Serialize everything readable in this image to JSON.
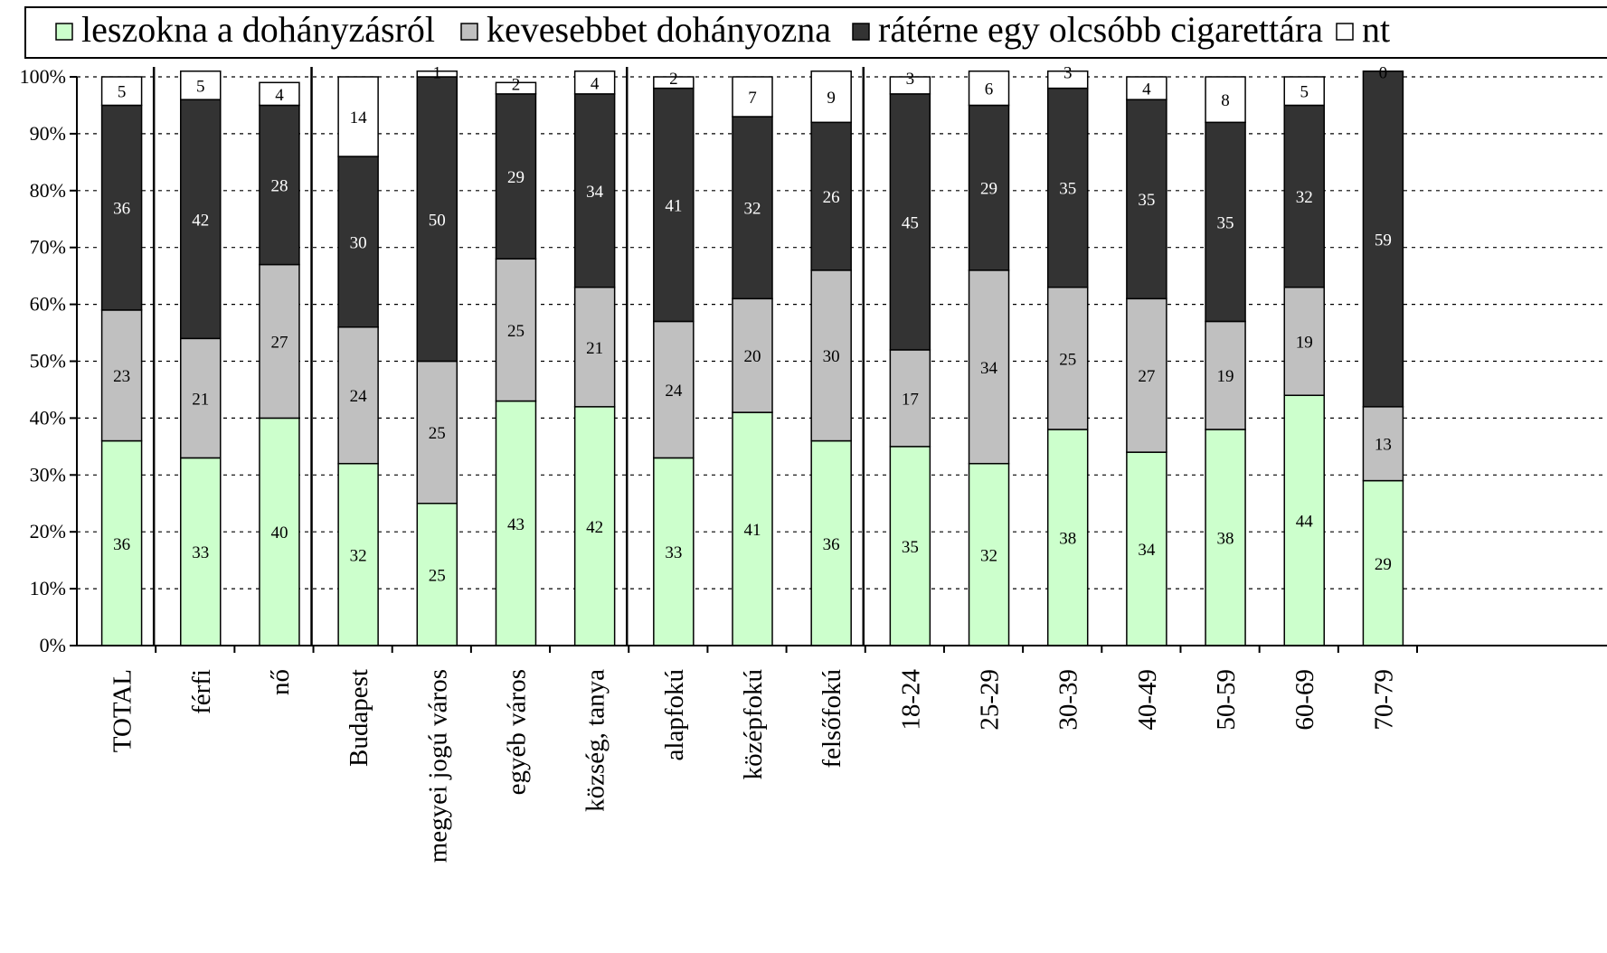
{
  "chart_data": {
    "type": "bar",
    "stacked": true,
    "percent": true,
    "legend_position": "top",
    "grid": true,
    "ylim": [
      0,
      100
    ],
    "y_ticks": [
      "0%",
      "10%",
      "20%",
      "30%",
      "40%",
      "50%",
      "60%",
      "70%",
      "80%",
      "90%",
      "100%"
    ],
    "categories": [
      "TOTAL",
      "férfi",
      "nő",
      "Budapest",
      "megyei jogú város",
      "egyéb város",
      "község, tanya",
      "alapfokú",
      "középfokú",
      "felsőfokú",
      "18-24",
      "25-29",
      "30-39",
      "40-49",
      "50-59",
      "60-69",
      "70-79"
    ],
    "group_separators_after": [
      0,
      2,
      6,
      9
    ],
    "series": [
      {
        "name": "leszokna a dohányzásról",
        "color": "#ccffcc",
        "values": [
          36,
          33,
          40,
          32,
          25,
          43,
          42,
          33,
          41,
          36,
          35,
          32,
          38,
          34,
          38,
          44,
          29
        ]
      },
      {
        "name": "kevesebbet dohányozna",
        "color": "#c0c0c0",
        "values": [
          23,
          21,
          27,
          24,
          25,
          25,
          21,
          24,
          20,
          30,
          17,
          34,
          25,
          27,
          19,
          19,
          13
        ]
      },
      {
        "name": "rátérne egy olcsóbb cigarettára",
        "color": "#333333",
        "values": [
          36,
          42,
          28,
          30,
          50,
          29,
          34,
          41,
          32,
          26,
          45,
          29,
          35,
          35,
          35,
          32,
          59
        ]
      },
      {
        "name": "nt",
        "color": "#ffffff",
        "values": [
          5,
          5,
          4,
          14,
          1,
          2,
          4,
          2,
          7,
          9,
          3,
          6,
          3,
          4,
          8,
          5,
          0
        ]
      }
    ]
  }
}
